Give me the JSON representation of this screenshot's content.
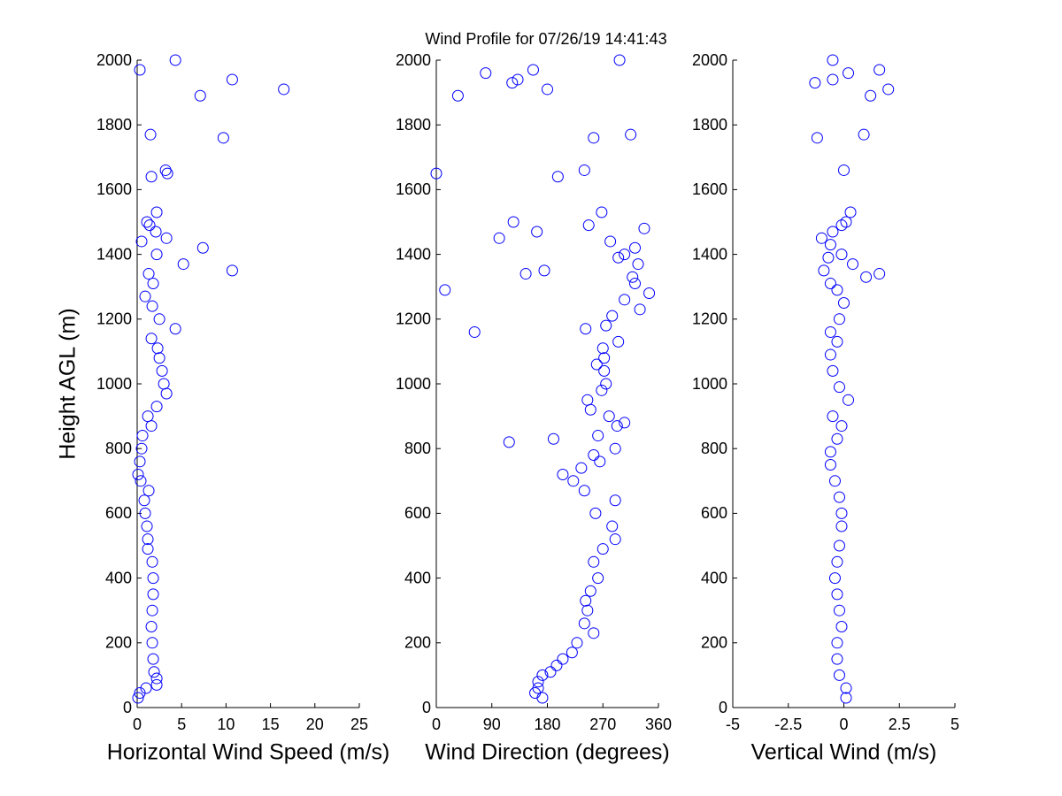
{
  "chart_data": [
    {
      "type": "scatter",
      "y_label": "Height AGL (m)",
      "x_label": "Horizontal Wind Speed (m/s)",
      "color": "#0000ff",
      "xlim": [
        0,
        25
      ],
      "xticks": [
        0,
        5,
        10,
        15,
        20,
        25
      ],
      "ylim": [
        0,
        2000
      ],
      "yticks": [
        0,
        200,
        400,
        600,
        800,
        1000,
        1200,
        1400,
        1600,
        1800,
        2000
      ],
      "x": [
        0.1,
        0.3,
        1.0,
        2.2,
        2.2,
        1.9,
        1.8,
        1.7,
        1.6,
        1.7,
        1.8,
        1.8,
        1.7,
        1.2,
        1.2,
        1.1,
        0.9,
        0.8,
        1.3,
        0.4,
        0.1,
        0.3,
        0.5,
        0.6,
        1.6,
        1.2,
        2.2,
        3.3,
        3.0,
        2.8,
        2.5,
        2.3,
        1.6,
        4.3,
        2.5,
        1.7,
        0.9,
        1.8,
        1.3,
        10.7,
        5.2,
        2.2,
        7.4,
        0.5,
        3.3,
        2.1,
        1.4,
        1.1,
        2.2,
        1.6,
        3.4,
        3.2,
        9.7,
        1.5,
        7.1,
        16.5,
        10.7,
        0.3,
        4.3
      ],
      "values": [
        30,
        45,
        60,
        70,
        90,
        110,
        150,
        200,
        250,
        300,
        350,
        400,
        450,
        490,
        520,
        560,
        600,
        640,
        670,
        700,
        720,
        760,
        800,
        840,
        870,
        900,
        930,
        970,
        1000,
        1040,
        1080,
        1110,
        1140,
        1170,
        1200,
        1240,
        1270,
        1310,
        1340,
        1350,
        1370,
        1400,
        1420,
        1440,
        1450,
        1470,
        1490,
        1500,
        1530,
        1640,
        1650,
        1660,
        1760,
        1770,
        1890,
        1910,
        1940,
        1970,
        2000
      ]
    },
    {
      "type": "scatter",
      "title": "Wind Profile for  07/26/19 14:41:43",
      "x_label": "Wind Direction (degrees)",
      "color": "#0000ff",
      "xlim": [
        0,
        360
      ],
      "xticks": [
        0,
        90,
        180,
        270,
        360
      ],
      "ylim": [
        0,
        2000
      ],
      "yticks": [
        0,
        200,
        400,
        600,
        800,
        1000,
        1200,
        1400,
        1600,
        1800,
        2000
      ],
      "x": [
        172,
        160,
        165,
        165,
        172,
        185,
        195,
        205,
        220,
        228,
        255,
        240,
        245,
        242,
        250,
        262,
        255,
        270,
        290,
        285,
        258,
        290,
        240,
        222,
        205,
        235,
        265,
        255,
        290,
        118,
        190,
        262,
        293,
        305,
        280,
        250,
        245,
        268,
        275,
        272,
        260,
        272,
        270,
        295,
        62,
        242,
        275,
        285,
        330,
        305,
        345,
        14,
        322,
        318,
        145,
        175,
        327,
        295,
        305,
        322,
        282,
        102,
        163,
        337,
        247,
        125,
        268,
        197,
        0,
        240,
        255,
        315,
        35,
        180,
        123,
        132,
        80,
        157,
        297
      ],
      "values": [
        30,
        45,
        60,
        80,
        100,
        110,
        130,
        150,
        170,
        200,
        230,
        260,
        300,
        330,
        360,
        400,
        450,
        490,
        520,
        560,
        600,
        640,
        670,
        700,
        720,
        740,
        760,
        780,
        800,
        820,
        830,
        840,
        870,
        880,
        900,
        920,
        950,
        980,
        1000,
        1040,
        1060,
        1080,
        1110,
        1130,
        1160,
        1170,
        1180,
        1210,
        1230,
        1260,
        1280,
        1290,
        1310,
        1330,
        1340,
        1350,
        1370,
        1390,
        1400,
        1420,
        1440,
        1450,
        1470,
        1480,
        1490,
        1500,
        1530,
        1640,
        1650,
        1660,
        1760,
        1770,
        1890,
        1910,
        1930,
        1940,
        1960,
        1970,
        2000
      ]
    },
    {
      "type": "scatter",
      "x_label": "Vertical Wind (m/s)",
      "color": "#0000ff",
      "xlim": [
        -5,
        5
      ],
      "xticks": [
        -5,
        -2.5,
        0,
        2.5,
        5
      ],
      "ylim": [
        0,
        2000
      ],
      "yticks": [
        0,
        200,
        400,
        600,
        800,
        1000,
        1200,
        1400,
        1600,
        1800,
        2000
      ],
      "x": [
        0.1,
        0.1,
        -0.2,
        -0.3,
        -0.3,
        -0.1,
        -0.2,
        -0.3,
        -0.4,
        -0.3,
        -0.2,
        -0.1,
        -0.1,
        -0.2,
        -0.4,
        -0.6,
        -0.6,
        -0.3,
        -0.1,
        -0.5,
        0.2,
        -0.2,
        -0.5,
        -0.6,
        -0.3,
        -0.6,
        -0.2,
        0.0,
        -0.3,
        -0.6,
        1.0,
        1.6,
        -0.9,
        0.4,
        -0.7,
        -0.1,
        -0.6,
        -1.0,
        -0.5,
        -0.1,
        0.1,
        0.3,
        0.0,
        -1.2,
        0.9,
        1.2,
        2.0,
        -1.3,
        -0.5,
        0.2,
        1.6,
        -0.5
      ],
      "values": [
        30,
        60,
        100,
        150,
        200,
        250,
        300,
        350,
        400,
        450,
        500,
        560,
        600,
        650,
        700,
        750,
        790,
        830,
        870,
        900,
        950,
        990,
        1040,
        1090,
        1130,
        1160,
        1200,
        1250,
        1290,
        1310,
        1330,
        1340,
        1350,
        1370,
        1390,
        1400,
        1430,
        1450,
        1470,
        1490,
        1500,
        1530,
        1660,
        1760,
        1770,
        1890,
        1910,
        1930,
        1940,
        1960,
        1970,
        2000
      ]
    }
  ]
}
